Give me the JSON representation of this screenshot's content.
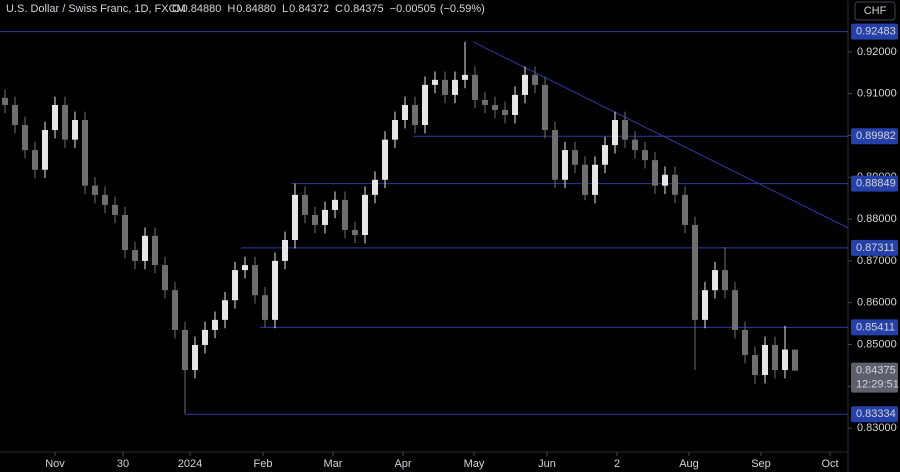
{
  "chart_data": {
    "type": "candlestick",
    "title": "U.S. Dollar / Swiss Franc, 1D, FXCM",
    "ohlc_header": [
      {
        "key": "O",
        "value": 0.8488,
        "label": "0.84880"
      },
      {
        "key": "H",
        "value": 0.8488,
        "label": "0.84880"
      },
      {
        "key": "L",
        "value": 0.84372,
        "label": "0.84372"
      },
      {
        "key": "C",
        "value": 0.84375,
        "label": "0.84375"
      }
    ],
    "change": {
      "value": -0.00505,
      "label": "−0.00505"
    },
    "change_pct": {
      "value": -0.59,
      "label": "(−0.59%)"
    },
    "currency": "CHF",
    "countdown": "12:29:51",
    "last_price": {
      "value": 0.84375,
      "label": "0.84375"
    },
    "up_color": "#e6e6e6",
    "down_color": "#6e6e6e",
    "line_color": "#2f3a9e",
    "label_color": "#2540a8",
    "x": [
      0,
      1,
      2,
      3,
      4,
      5,
      6,
      7,
      8,
      9,
      10,
      11,
      12,
      13,
      14,
      15,
      16,
      17,
      18,
      19,
      20,
      21,
      22,
      23,
      24,
      25,
      26,
      27,
      28,
      29,
      30,
      31,
      32,
      33,
      34,
      35,
      36,
      37,
      38,
      39,
      40,
      41,
      42,
      43,
      44,
      45,
      46,
      47,
      48,
      49,
      50,
      51,
      52,
      53,
      54,
      55,
      56,
      57,
      58,
      59,
      60,
      61,
      62,
      63,
      64,
      65,
      66,
      67,
      68,
      69,
      70,
      71,
      72,
      73,
      74,
      75,
      76,
      77,
      78,
      79
    ],
    "open": [
      0.909,
      0.9073,
      0.9025,
      0.8965,
      0.8918,
      0.9013,
      0.9073,
      0.899,
      0.9037,
      0.888,
      0.8858,
      0.8834,
      0.881,
      0.8726,
      0.87,
      0.876,
      0.869,
      0.863,
      0.8535,
      0.8439,
      0.8499,
      0.8535,
      0.8559,
      0.8606,
      0.8678,
      0.869,
      0.8618,
      0.8559,
      0.87,
      0.875,
      0.8858,
      0.881,
      0.8786,
      0.8822,
      0.8846,
      0.8774,
      0.8762,
      0.8858,
      0.8894,
      0.899,
      0.9037,
      0.9073,
      0.9025,
      0.9121,
      0.9133,
      0.9097,
      0.9133,
      0.9145,
      0.9085,
      0.9073,
      0.9061,
      0.9049,
      0.9097,
      0.9145,
      0.9121,
      0.9013,
      0.8894,
      0.8965,
      0.893,
      0.8858,
      0.893,
      0.8977,
      0.9037,
      0.899,
      0.8965,
      0.8941,
      0.888,
      0.8906,
      0.8858,
      0.8786,
      0.8559,
      0.863,
      0.8678,
      0.863,
      0.8535,
      0.8475,
      0.8427,
      0.8499,
      0.8439,
      0.8488
    ],
    "high": [
      0.911,
      0.9093,
      0.9045,
      0.8985,
      0.9033,
      0.9093,
      0.9093,
      0.9057,
      0.9057,
      0.89,
      0.8878,
      0.8854,
      0.883,
      0.8746,
      0.878,
      0.878,
      0.871,
      0.865,
      0.8555,
      0.8519,
      0.8555,
      0.8579,
      0.8626,
      0.8698,
      0.871,
      0.871,
      0.8638,
      0.872,
      0.877,
      0.8885,
      0.8878,
      0.883,
      0.8842,
      0.8866,
      0.8866,
      0.8794,
      0.8878,
      0.8914,
      0.901,
      0.9057,
      0.9093,
      0.9093,
      0.9141,
      0.9153,
      0.9153,
      0.9153,
      0.9224,
      0.9165,
      0.9105,
      0.9093,
      0.9081,
      0.9117,
      0.9165,
      0.9165,
      0.9141,
      0.9033,
      0.8985,
      0.8985,
      0.895,
      0.895,
      0.8997,
      0.9057,
      0.9057,
      0.901,
      0.8985,
      0.8961,
      0.8926,
      0.8926,
      0.8878,
      0.8806,
      0.865,
      0.8698,
      0.8733,
      0.865,
      0.8555,
      0.8495,
      0.8519,
      0.8519,
      0.8545,
      0.8488
    ],
    "low": [
      0.9053,
      0.9005,
      0.8945,
      0.8898,
      0.8898,
      0.8993,
      0.897,
      0.897,
      0.886,
      0.8838,
      0.8814,
      0.879,
      0.8706,
      0.868,
      0.868,
      0.867,
      0.861,
      0.8515,
      0.8333,
      0.8419,
      0.8479,
      0.8515,
      0.8539,
      0.8586,
      0.8658,
      0.8598,
      0.8541,
      0.8539,
      0.868,
      0.873,
      0.879,
      0.8766,
      0.8766,
      0.8802,
      0.8754,
      0.8742,
      0.8742,
      0.8838,
      0.8874,
      0.897,
      0.9017,
      0.9005,
      0.9005,
      0.9101,
      0.9077,
      0.9077,
      0.9113,
      0.9065,
      0.9053,
      0.9041,
      0.9029,
      0.9029,
      0.9077,
      0.9101,
      0.8993,
      0.8874,
      0.8874,
      0.891,
      0.8845,
      0.8838,
      0.891,
      0.8957,
      0.897,
      0.8945,
      0.8921,
      0.886,
      0.886,
      0.8838,
      0.8766,
      0.8439,
      0.8539,
      0.861,
      0.861,
      0.8515,
      0.8455,
      0.8405,
      0.8407,
      0.8419,
      0.8419,
      0.84372
    ],
    "close": [
      0.9073,
      0.9025,
      0.8965,
      0.8918,
      0.9013,
      0.9073,
      0.899,
      0.9037,
      0.888,
      0.8858,
      0.8834,
      0.881,
      0.8726,
      0.87,
      0.876,
      0.869,
      0.863,
      0.8535,
      0.8439,
      0.8499,
      0.8535,
      0.8559,
      0.8606,
      0.8678,
      0.869,
      0.8618,
      0.8559,
      0.87,
      0.875,
      0.8858,
      0.881,
      0.8786,
      0.8822,
      0.8846,
      0.8774,
      0.8762,
      0.8858,
      0.8894,
      0.899,
      0.9037,
      0.9073,
      0.9025,
      0.9121,
      0.9133,
      0.9097,
      0.9133,
      0.9145,
      0.9085,
      0.9073,
      0.9061,
      0.9049,
      0.9097,
      0.9145,
      0.9121,
      0.9013,
      0.8894,
      0.8965,
      0.893,
      0.8858,
      0.893,
      0.8977,
      0.9037,
      0.899,
      0.8965,
      0.8941,
      0.888,
      0.8906,
      0.8858,
      0.8786,
      0.8559,
      0.863,
      0.8678,
      0.863,
      0.8535,
      0.8475,
      0.8427,
      0.8499,
      0.8439,
      0.8488,
      0.84375
    ],
    "levels": [
      {
        "value": 0.92483,
        "start": -0.5
      },
      {
        "value": 0.89982,
        "start": 40.8
      },
      {
        "value": 0.88849,
        "start": 28.6
      },
      {
        "value": 0.87311,
        "start": 23.6
      },
      {
        "value": 0.85411,
        "start": 25.5
      },
      {
        "value": 0.83334,
        "start": 18.1
      }
    ],
    "trendline": {
      "x": [
        46.8,
        84.3
      ],
      "y": [
        0.9224,
        0.8779
      ]
    },
    "xlim": [
      -0.5,
      84.3
    ],
    "ylim": [
      0.8243,
      0.9324
    ],
    "xticks": [
      {
        "value": 5,
        "label": "Nov"
      },
      {
        "value": 11.8,
        "label": "30"
      },
      {
        "value": 18.5,
        "label": "2024"
      },
      {
        "value": 25.8,
        "label": "Feb"
      },
      {
        "value": 32.8,
        "label": "Mar"
      },
      {
        "value": 39.8,
        "label": "Apr"
      },
      {
        "value": 46.9,
        "label": "May"
      },
      {
        "value": 54.2,
        "label": "Jun"
      },
      {
        "value": 61.2,
        "label": "2"
      },
      {
        "value": 68.4,
        "label": "Aug"
      },
      {
        "value": 75.6,
        "label": "Sep"
      },
      {
        "value": 82.5,
        "label": "Oct"
      }
    ],
    "yticks": [
      {
        "value": 0.92,
        "label": "0.92000"
      },
      {
        "value": 0.91,
        "label": "0.91000"
      },
      {
        "value": 0.9,
        "label": "0.90000"
      },
      {
        "value": 0.89,
        "label": "0.89000"
      },
      {
        "value": 0.88,
        "label": "0.88000"
      },
      {
        "value": 0.87,
        "label": "0.87000"
      },
      {
        "value": 0.86,
        "label": "0.86000"
      },
      {
        "value": 0.85,
        "label": "0.85000"
      },
      {
        "value": 0.84,
        "label": "0.84000"
      },
      {
        "value": 0.83,
        "label": "0.83000"
      }
    ]
  }
}
